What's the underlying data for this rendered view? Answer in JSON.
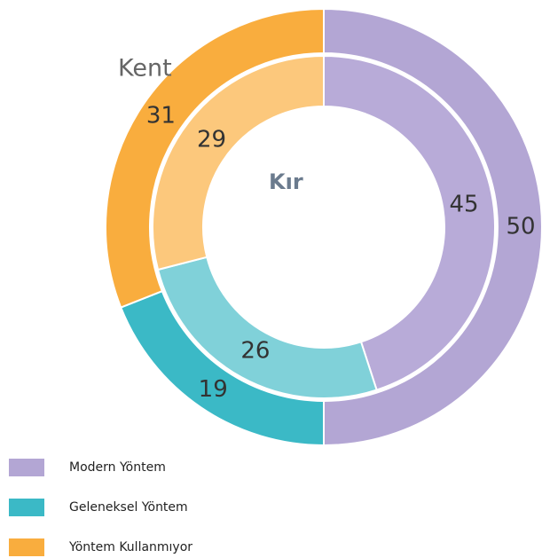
{
  "chart_data": {
    "type": "donut",
    "categories": [
      "Modern Yöntem",
      "Geleneksel Yöntem",
      "Yöntem Kullanmıyor"
    ],
    "series": [
      {
        "name": "Kent",
        "values": [
          50,
          19,
          31
        ],
        "colors": [
          "#b3a6d4",
          "#3bb9c6",
          "#f9ad3e"
        ]
      },
      {
        "name": "Kır",
        "values": [
          45,
          26,
          29
        ],
        "colors": [
          "#b8abd8",
          "#80d1d9",
          "#fcc87c"
        ]
      }
    ]
  }
}
